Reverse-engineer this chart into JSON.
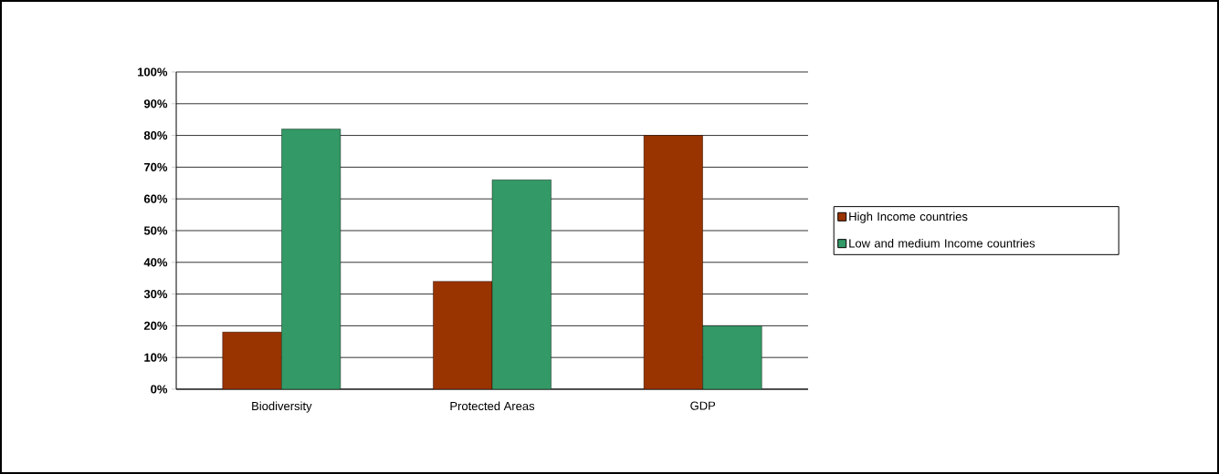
{
  "chart_data": {
    "type": "bar",
    "categories": [
      "Biodiversity",
      "Protected Areas",
      "GDP"
    ],
    "series": [
      {
        "name": "High Income countries",
        "color": "#993300",
        "values": [
          18,
          34,
          80
        ]
      },
      {
        "name": "Low and medium Income countries",
        "color": "#339966",
        "values": [
          82,
          66,
          20
        ]
      }
    ],
    "ylim": [
      0,
      100
    ],
    "yticks": [
      {
        "value": 0,
        "label": "0%"
      },
      {
        "value": 10,
        "label": "10%"
      },
      {
        "value": 20,
        "label": "20%"
      },
      {
        "value": 30,
        "label": "30%"
      },
      {
        "value": 40,
        "label": "40%"
      },
      {
        "value": 50,
        "label": "50%"
      },
      {
        "value": 60,
        "label": "60%"
      },
      {
        "value": 70,
        "label": "70%"
      },
      {
        "value": 80,
        "label": "80%"
      },
      {
        "value": 90,
        "label": "90%"
      },
      {
        "value": 100,
        "label": "100%"
      }
    ],
    "grid": "y",
    "legend": "right"
  }
}
